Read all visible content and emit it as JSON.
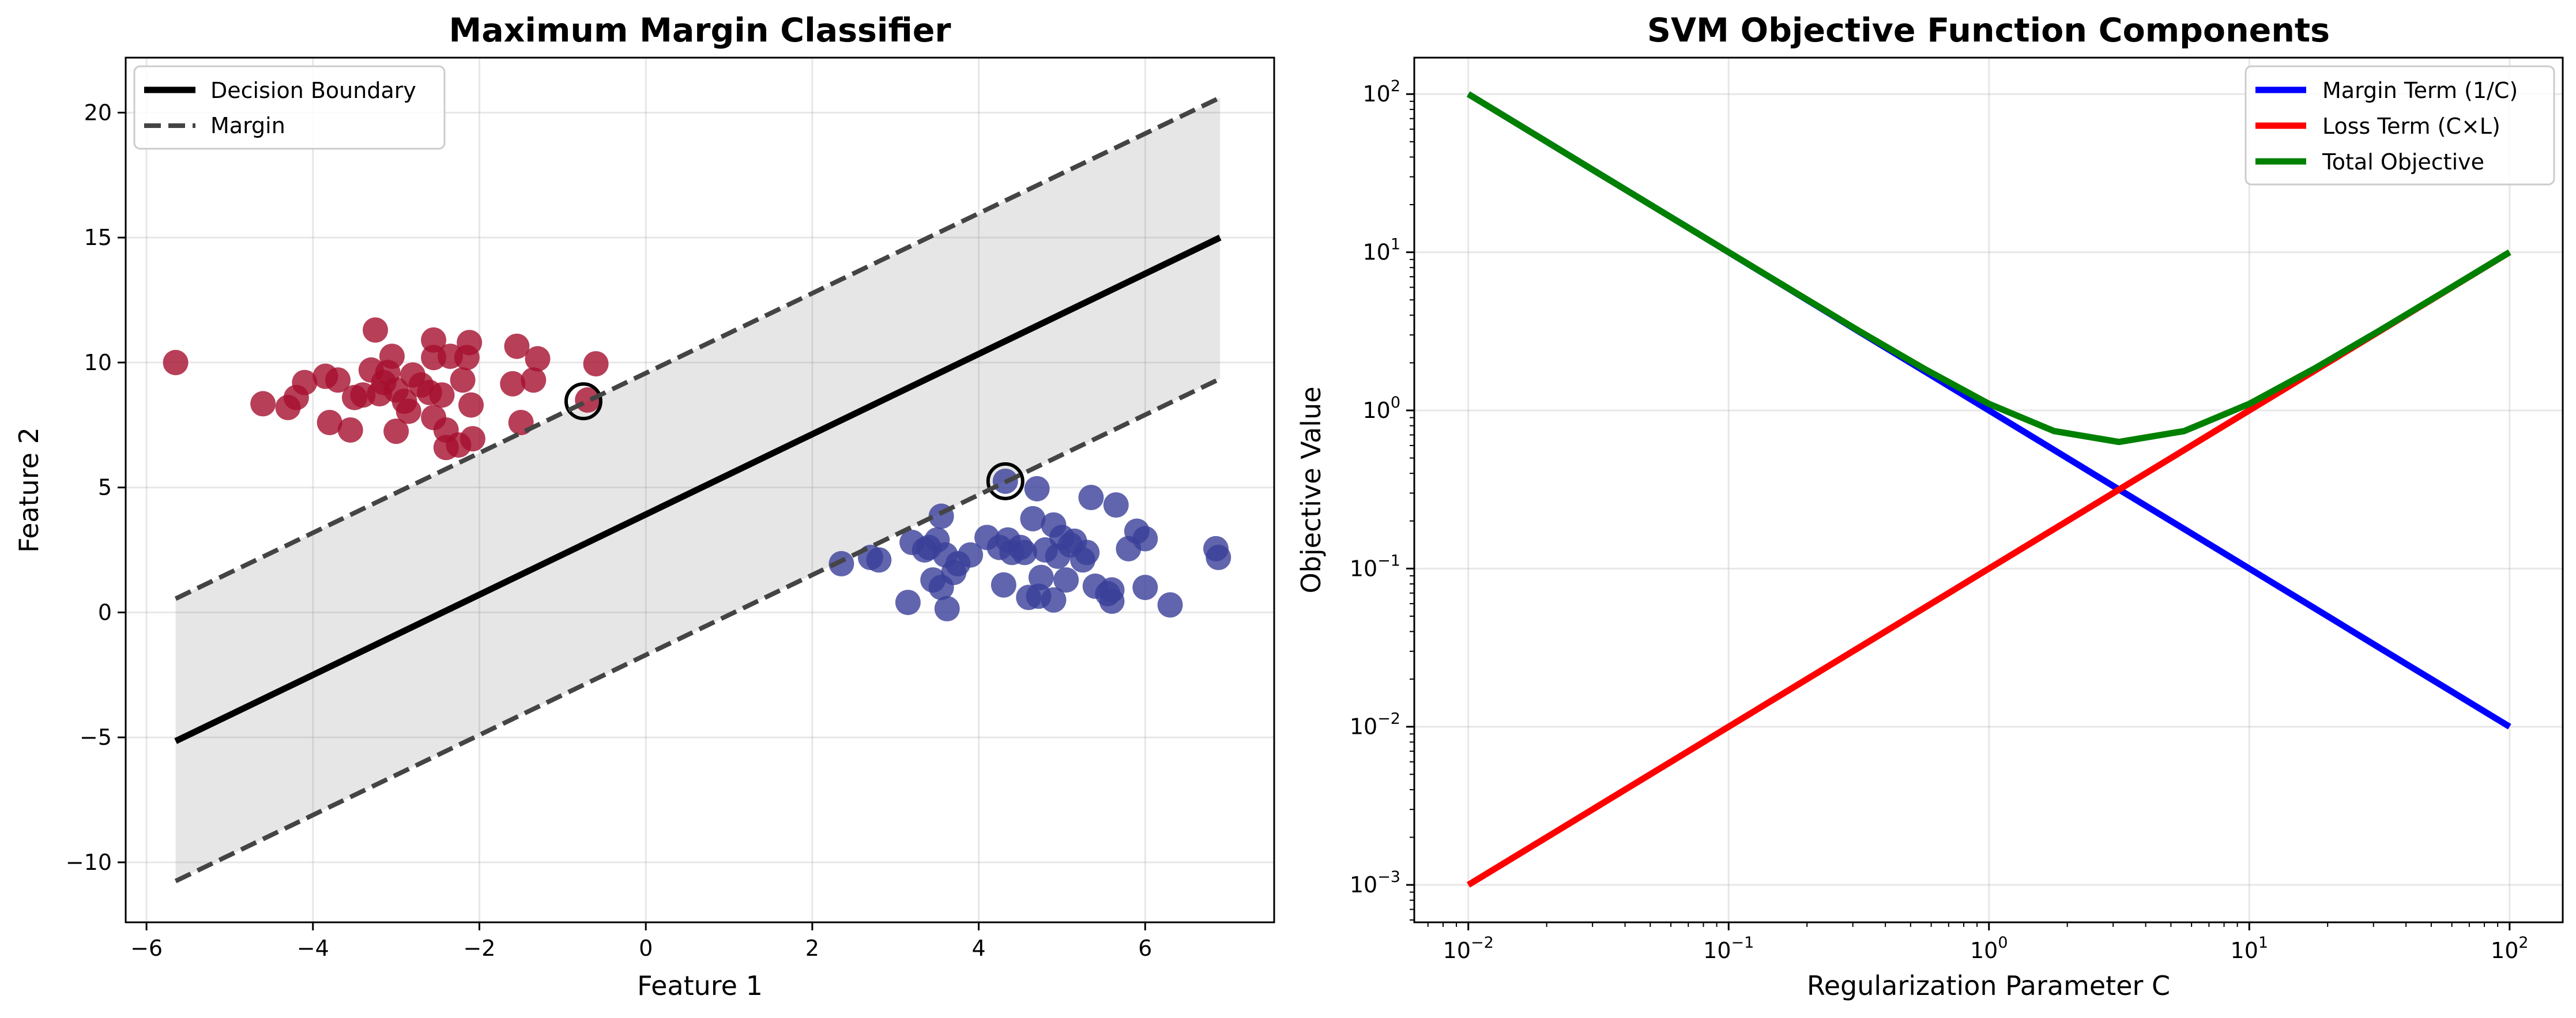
{
  "chart_data": [
    {
      "type": "scatter",
      "title": "Maximum Margin Classifier",
      "xlabel": "Feature 1",
      "ylabel": "Feature 2",
      "xlim": [
        -6.25,
        7.55
      ],
      "ylim": [
        -12.4,
        22.2
      ],
      "xticks": [
        -6,
        -4,
        -2,
        0,
        2,
        4,
        6
      ],
      "yticks": [
        -10,
        -5,
        0,
        5,
        10,
        15,
        20
      ],
      "grid": true,
      "legend_placement": "upper-left",
      "decision_boundary": {
        "x": [
          -5.65,
          6.9
        ],
        "y": [
          -5.15,
          15.0
        ]
      },
      "margin_upper": {
        "x": [
          -5.65,
          6.9
        ],
        "y": [
          0.55,
          20.6
        ]
      },
      "margin_lower": {
        "x": [
          -5.65,
          6.9
        ],
        "y": [
          -10.75,
          9.35
        ]
      },
      "legend": [
        {
          "label": "Decision Boundary",
          "style": "solid",
          "color": "#000000"
        },
        {
          "label": "Margin",
          "style": "dashed",
          "color": "#444444"
        }
      ],
      "support_vectors": [
        [
          -0.75,
          8.45
        ],
        [
          4.32,
          5.25
        ]
      ],
      "series": [
        {
          "color": "#a50f2e",
          "points": [
            [
              -5.65,
              10.0
            ],
            [
              -4.6,
              8.35
            ],
            [
              -4.3,
              8.2
            ],
            [
              -4.2,
              8.6
            ],
            [
              -4.1,
              9.2
            ],
            [
              -3.85,
              9.45
            ],
            [
              -3.7,
              9.3
            ],
            [
              -3.8,
              7.6
            ],
            [
              -3.55,
              7.3
            ],
            [
              -3.5,
              8.6
            ],
            [
              -3.4,
              8.7
            ],
            [
              -3.3,
              9.7
            ],
            [
              -3.25,
              11.3
            ],
            [
              -3.2,
              8.75
            ],
            [
              -3.15,
              9.2
            ],
            [
              -3.1,
              9.6
            ],
            [
              -3.05,
              10.25
            ],
            [
              -3.0,
              8.9
            ],
            [
              -3.0,
              7.25
            ],
            [
              -2.9,
              8.45
            ],
            [
              -2.85,
              8.05
            ],
            [
              -2.8,
              9.5
            ],
            [
              -2.7,
              9.1
            ],
            [
              -2.6,
              8.8
            ],
            [
              -2.55,
              10.2
            ],
            [
              -2.55,
              10.9
            ],
            [
              -2.55,
              7.8
            ],
            [
              -2.45,
              8.7
            ],
            [
              -2.4,
              7.3
            ],
            [
              -2.4,
              6.6
            ],
            [
              -2.35,
              10.25
            ],
            [
              -2.25,
              6.7
            ],
            [
              -2.2,
              9.3
            ],
            [
              -2.15,
              10.2
            ],
            [
              -2.12,
              10.8
            ],
            [
              -2.1,
              8.3
            ],
            [
              -2.08,
              6.95
            ],
            [
              -1.6,
              9.15
            ],
            [
              -1.55,
              10.65
            ],
            [
              -1.5,
              7.6
            ],
            [
              -1.3,
              10.15
            ],
            [
              -1.35,
              9.3
            ],
            [
              -0.7,
              8.5
            ],
            [
              -0.6,
              9.95
            ]
          ]
        },
        {
          "color": "#3a3f99",
          "points": [
            [
              2.35,
              1.95
            ],
            [
              2.7,
              2.2
            ],
            [
              2.8,
              2.1
            ],
            [
              3.15,
              0.4
            ],
            [
              3.2,
              2.8
            ],
            [
              3.35,
              2.5
            ],
            [
              3.4,
              2.6
            ],
            [
              3.45,
              1.3
            ],
            [
              3.5,
              2.9
            ],
            [
              3.55,
              3.85
            ],
            [
              3.55,
              1.0
            ],
            [
              3.6,
              2.3
            ],
            [
              3.62,
              0.15
            ],
            [
              3.7,
              1.6
            ],
            [
              3.75,
              1.95
            ],
            [
              3.9,
              2.3
            ],
            [
              4.1,
              3.0
            ],
            [
              4.25,
              2.6
            ],
            [
              4.3,
              1.1
            ],
            [
              4.32,
              5.25
            ],
            [
              4.35,
              2.9
            ],
            [
              4.4,
              2.4
            ],
            [
              4.5,
              2.6
            ],
            [
              4.55,
              2.4
            ],
            [
              4.6,
              0.6
            ],
            [
              4.65,
              3.75
            ],
            [
              4.7,
              4.95
            ],
            [
              4.72,
              0.65
            ],
            [
              4.75,
              1.4
            ],
            [
              4.8,
              2.5
            ],
            [
              4.9,
              3.5
            ],
            [
              4.95,
              2.25
            ],
            [
              4.9,
              0.5
            ],
            [
              5.0,
              3.0
            ],
            [
              5.05,
              1.3
            ],
            [
              5.1,
              2.7
            ],
            [
              5.15,
              2.85
            ],
            [
              5.25,
              2.1
            ],
            [
              5.3,
              2.4
            ],
            [
              5.35,
              4.6
            ],
            [
              5.4,
              1.05
            ],
            [
              5.55,
              0.75
            ],
            [
              5.6,
              0.9
            ],
            [
              5.6,
              0.45
            ],
            [
              5.65,
              4.3
            ],
            [
              5.8,
              2.55
            ],
            [
              5.9,
              3.25
            ],
            [
              6.0,
              2.95
            ],
            [
              6.0,
              1.0
            ],
            [
              6.3,
              0.3
            ],
            [
              6.85,
              2.55
            ],
            [
              6.88,
              2.2
            ]
          ]
        }
      ]
    },
    {
      "type": "line",
      "title": "SVM Objective Function Components",
      "xlabel": "Regularization Parameter C",
      "ylabel": "Objective Value",
      "xscale": "log",
      "yscale": "log",
      "xlim": [
        0.0062,
        160
      ],
      "ylim": [
        0.00058,
        170
      ],
      "xticks": [
        {
          "base": "10",
          "exp": "−2",
          "value": 0.01
        },
        {
          "base": "10",
          "exp": "−1",
          "value": 0.1
        },
        {
          "base": "10",
          "exp": "0",
          "value": 1
        },
        {
          "base": "10",
          "exp": "1",
          "value": 10
        },
        {
          "base": "10",
          "exp": "2",
          "value": 100
        }
      ],
      "yticks": [
        {
          "base": "10",
          "exp": "−3",
          "value": 0.001
        },
        {
          "base": "10",
          "exp": "−2",
          "value": 0.01
        },
        {
          "base": "10",
          "exp": "−1",
          "value": 0.1
        },
        {
          "base": "10",
          "exp": "0",
          "value": 1
        },
        {
          "base": "10",
          "exp": "1",
          "value": 10
        },
        {
          "base": "10",
          "exp": "2",
          "value": 100
        }
      ],
      "grid": true,
      "legend_placement": "upper-right",
      "x": [
        0.01,
        0.0178,
        0.0316,
        0.0562,
        0.1,
        0.178,
        0.316,
        0.562,
        1.0,
        1.78,
        3.16,
        5.62,
        10.0,
        17.8,
        31.6,
        56.2,
        100.0
      ],
      "series": [
        {
          "name": "Margin Term (1/C)",
          "color": "#0000ff",
          "values": [
            100,
            56.2,
            31.6,
            17.8,
            10,
            5.62,
            3.16,
            1.78,
            1.0,
            0.562,
            0.316,
            0.178,
            0.1,
            0.0562,
            0.0316,
            0.0178,
            0.01
          ]
        },
        {
          "name": "Loss Term (C×L)",
          "color": "#ff0000",
          "values": [
            0.001,
            0.00178,
            0.00316,
            0.00562,
            0.01,
            0.0178,
            0.0316,
            0.0562,
            0.1,
            0.178,
            0.316,
            0.562,
            1.0,
            1.78,
            3.16,
            5.62,
            10.0
          ]
        },
        {
          "name": "Total Objective",
          "color": "#008000",
          "values": [
            100.001,
            56.2,
            31.6,
            17.8,
            10.01,
            5.64,
            3.19,
            1.84,
            1.1,
            0.74,
            0.632,
            0.74,
            1.1,
            1.84,
            3.19,
            5.64,
            10.01
          ]
        }
      ]
    }
  ]
}
